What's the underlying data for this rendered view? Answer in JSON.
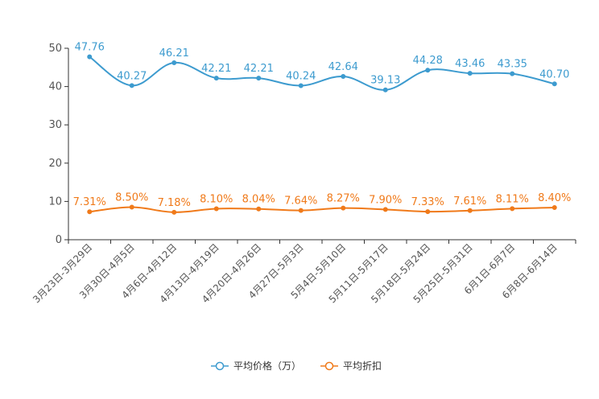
{
  "chart_data": {
    "type": "line",
    "title": "",
    "xlabel": "",
    "ylabel": "",
    "ylim": [
      0,
      50
    ],
    "yticks": [
      0,
      10,
      20,
      30,
      40,
      50
    ],
    "categories": [
      "3月23日-3月29日",
      "3月30日-4月5日",
      "4月6日-4月12日",
      "4月13日-4月19日",
      "4月20日-4月26日",
      "4月27日-5月3日",
      "5月4日-5月10日",
      "5月11日-5月17日",
      "5月18日-5月24日",
      "5月25日-5月31日",
      "6月1日-6月7日",
      "6月8日-6月14日"
    ],
    "series": [
      {
        "name": "平均价格（万）",
        "color": "#3d9bcf",
        "values": [
          47.76,
          40.27,
          46.21,
          42.21,
          42.21,
          40.24,
          42.64,
          39.13,
          44.28,
          43.46,
          43.35,
          40.7
        ],
        "labels": [
          "47.76",
          "40.27",
          "46.21",
          "42.21",
          "42.21",
          "40.24",
          "42.64",
          "39.13",
          "44.28",
          "43.46",
          "43.35",
          "40.70"
        ]
      },
      {
        "name": "平均折扣",
        "color": "#f07a1a",
        "values": [
          7.31,
          8.5,
          7.18,
          8.1,
          8.04,
          7.64,
          8.27,
          7.9,
          7.33,
          7.61,
          8.11,
          8.4
        ],
        "labels": [
          "7.31%",
          "8.50%",
          "7.18%",
          "8.10%",
          "8.04%",
          "7.64%",
          "8.27%",
          "7.90%",
          "7.33%",
          "7.61%",
          "8.11%",
          "8.40%"
        ]
      }
    ],
    "legend_position": "bottom-center",
    "grid": false
  }
}
